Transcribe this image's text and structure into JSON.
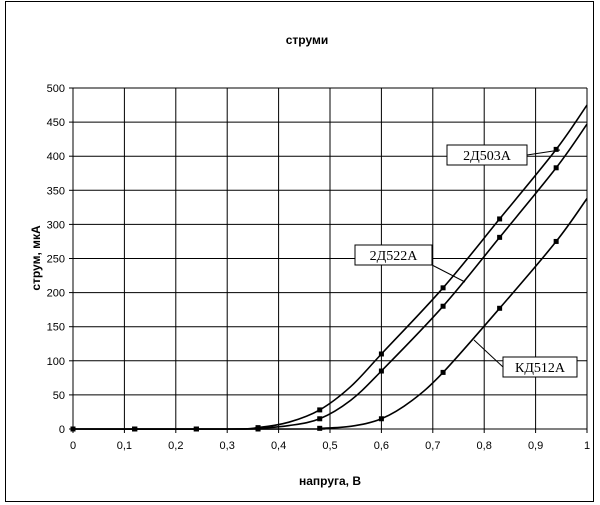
{
  "chart_data": {
    "type": "line",
    "title": "струми",
    "xlabel": "напруга, В",
    "ylabel": "струм, мкА",
    "xlim": [
      0,
      1
    ],
    "ylim": [
      0,
      500
    ],
    "x_ticks": [
      "0",
      "0,1",
      "0,2",
      "0,3",
      "0,4",
      "0,5",
      "0,6",
      "0,7",
      "0,8",
      "0,9",
      "1"
    ],
    "y_ticks": [
      "0",
      "50",
      "100",
      "150",
      "200",
      "250",
      "300",
      "350",
      "400",
      "450",
      "500"
    ],
    "grid": true,
    "series": [
      {
        "name": "2Д503А",
        "points": [
          [
            0,
            0
          ],
          [
            0.12,
            0
          ],
          [
            0.24,
            0
          ],
          [
            0.36,
            2
          ],
          [
            0.48,
            28
          ],
          [
            0.6,
            110
          ],
          [
            0.72,
            207
          ],
          [
            0.83,
            308
          ],
          [
            0.94,
            410
          ]
        ],
        "curve": [
          [
            0,
            0
          ],
          [
            0.3,
            0
          ],
          [
            0.36,
            2
          ],
          [
            0.42,
            10
          ],
          [
            0.48,
            28
          ],
          [
            0.54,
            62
          ],
          [
            0.6,
            110
          ],
          [
            0.72,
            207
          ],
          [
            0.83,
            308
          ],
          [
            0.94,
            410
          ],
          [
            1.0,
            475
          ]
        ]
      },
      {
        "name": "2Д522А",
        "points": [
          [
            0,
            0
          ],
          [
            0.12,
            0
          ],
          [
            0.24,
            0
          ],
          [
            0.36,
            1
          ],
          [
            0.48,
            15
          ],
          [
            0.6,
            85
          ],
          [
            0.72,
            180
          ],
          [
            0.83,
            281
          ],
          [
            0.94,
            383
          ]
        ],
        "curve": [
          [
            0,
            0
          ],
          [
            0.3,
            0
          ],
          [
            0.36,
            1
          ],
          [
            0.42,
            5
          ],
          [
            0.48,
            15
          ],
          [
            0.54,
            42
          ],
          [
            0.6,
            85
          ],
          [
            0.72,
            180
          ],
          [
            0.83,
            281
          ],
          [
            0.94,
            383
          ],
          [
            1.0,
            447
          ]
        ]
      },
      {
        "name": "КД512А",
        "points": [
          [
            0,
            0
          ],
          [
            0.12,
            0
          ],
          [
            0.24,
            0
          ],
          [
            0.36,
            0
          ],
          [
            0.48,
            1
          ],
          [
            0.6,
            15
          ],
          [
            0.72,
            83
          ],
          [
            0.83,
            177
          ],
          [
            0.94,
            275
          ]
        ],
        "curve": [
          [
            0,
            0
          ],
          [
            0.45,
            0
          ],
          [
            0.48,
            1
          ],
          [
            0.54,
            4
          ],
          [
            0.6,
            15
          ],
          [
            0.66,
            42
          ],
          [
            0.72,
            83
          ],
          [
            0.83,
            177
          ],
          [
            0.94,
            275
          ],
          [
            1.0,
            338
          ]
        ]
      }
    ]
  }
}
